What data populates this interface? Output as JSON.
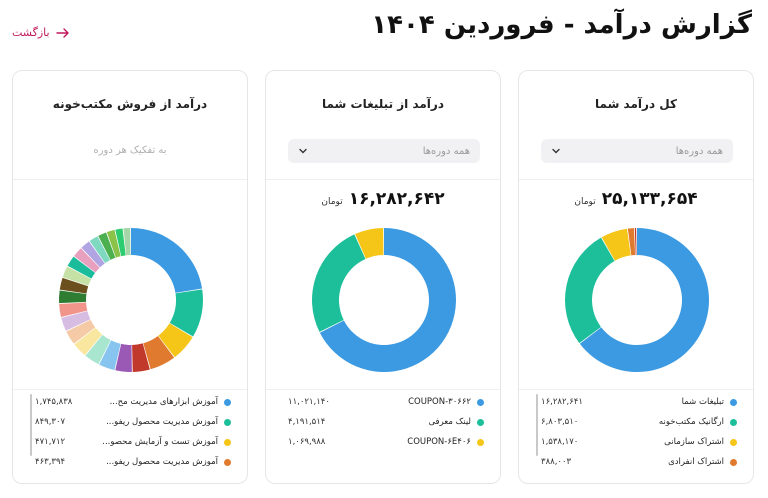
{
  "header": {
    "title": "گزارش درآمد - فروردین ۱۴۰۴",
    "back_label": "بازگشت"
  },
  "cards": {
    "total": {
      "title": "کل درآمد شما",
      "period_placeholder": "همه دوره‌ها",
      "total_value": "۲۵,۱۳۳,۶۵۴",
      "total_unit": "تومان",
      "legend": [
        {
          "label": "تبلیغات شما",
          "value": "۱۶,۲۸۲,۶۴۱",
          "color": "#3b9ae1"
        },
        {
          "label": "ارگانیک مکتب‌خونه",
          "value": "۶,۸۰۳,۵۱۰",
          "color": "#1dbf9a"
        },
        {
          "label": "اشتراک سازمانی",
          "value": "۱,۵۳۸,۱۷۰",
          "color": "#f5c518"
        },
        {
          "label": "اشتراک انفرادی",
          "value": "۳۸۸,۰۰۳",
          "color": "#e07a2e"
        }
      ]
    },
    "ads": {
      "title": "درآمد از تبلیغات شما",
      "period_placeholder": "همه دوره‌ها",
      "total_value": "۱۶,۲۸۲,۶۴۲",
      "total_unit": "تومان",
      "legend": [
        {
          "label": "COUPON-۳۰۶۶۲",
          "value": "۱۱,۰۲۱,۱۴۰",
          "color": "#3b9ae1"
        },
        {
          "label": "لینک معرفی",
          "value": "۴,۱۹۱,۵۱۴",
          "color": "#1dbf9a"
        },
        {
          "label": "COUPON-۶E۴۰۶",
          "value": "۱,۰۶۹,۹۸۸",
          "color": "#f5c518"
        }
      ]
    },
    "store": {
      "title": "درآمد از فروش مکتب‌خونه",
      "subtitle": "به تفکیک هر دوره",
      "legend": [
        {
          "label": "آموزش ابزارهای مدیریت مح...",
          "value": "۱,۷۴۵,۸۳۸",
          "color": "#3b9ae1"
        },
        {
          "label": "آموزش مدیریت محصول ریفو...",
          "value": "۸۴۹,۳۰۷",
          "color": "#1dbf9a"
        },
        {
          "label": "آموزش تست و آزمایش محصو...",
          "value": "۴۷۱,۷۱۲",
          "color": "#f5c518"
        },
        {
          "label": "آموزش مدیریت محصول ریفو...",
          "value": "۴۶۳,۳۹۴",
          "color": "#e07a2e"
        }
      ]
    }
  },
  "chart_data": [
    {
      "type": "pie",
      "categories": [
        "تبلیغات شما",
        "ارگانیک مکتب‌خونه",
        "اشتراک سازمانی",
        "اشتراک انفرادی",
        ""
      ],
      "values": [
        16282641,
        6803510,
        1538170,
        388003,
        121330
      ],
      "colors": [
        "#3b9ae1",
        "#1dbf9a",
        "#f5c518",
        "#e07a2e",
        "#c0392b"
      ]
    },
    {
      "type": "pie",
      "categories": [
        "COUPON-۳۰۶۶۲",
        "لینک معرفی",
        "COUPON-۶E۴۰۶"
      ],
      "values": [
        11021140,
        4191514,
        1069988
      ],
      "colors": [
        "#3b9ae1",
        "#1dbf9a",
        "#f5c518"
      ]
    },
    {
      "type": "pie",
      "categories": [
        "آموزش ابزارهای مدیریت مح...",
        "آموزش مدیریت محصول ریفو...",
        "آموزش تست و آزمایش محصو...",
        "آموزش مدیریت محصول ریفو...",
        "",
        "",
        "",
        "",
        "",
        "",
        "",
        "",
        "",
        "",
        "",
        "",
        "",
        "",
        "",
        "",
        "",
        "",
        ""
      ],
      "values": [
        1745838,
        849307,
        471712,
        463394,
        310000,
        300000,
        290000,
        280000,
        270000,
        260000,
        250000,
        240000,
        230000,
        220000,
        210000,
        200000,
        190000,
        180000,
        170000,
        160000,
        150000,
        140000,
        130000
      ],
      "colors": [
        "#3b9ae1",
        "#1dbf9a",
        "#f5c518",
        "#e07a2e",
        "#c0392b",
        "#9b59b6",
        "#87c4f0",
        "#a8e6cf",
        "#f9e79f",
        "#f5cba7",
        "#d7bde2",
        "#f1948a",
        "#2e7d32",
        "#6b4f1d",
        "#c5e1a5",
        "#1abc9c",
        "#e8a0bf",
        "#b0a4e3",
        "#7fd8c0",
        "#4caf50",
        "#8bc34a",
        "#2ecc71",
        "#a5d6a7"
      ]
    }
  ]
}
